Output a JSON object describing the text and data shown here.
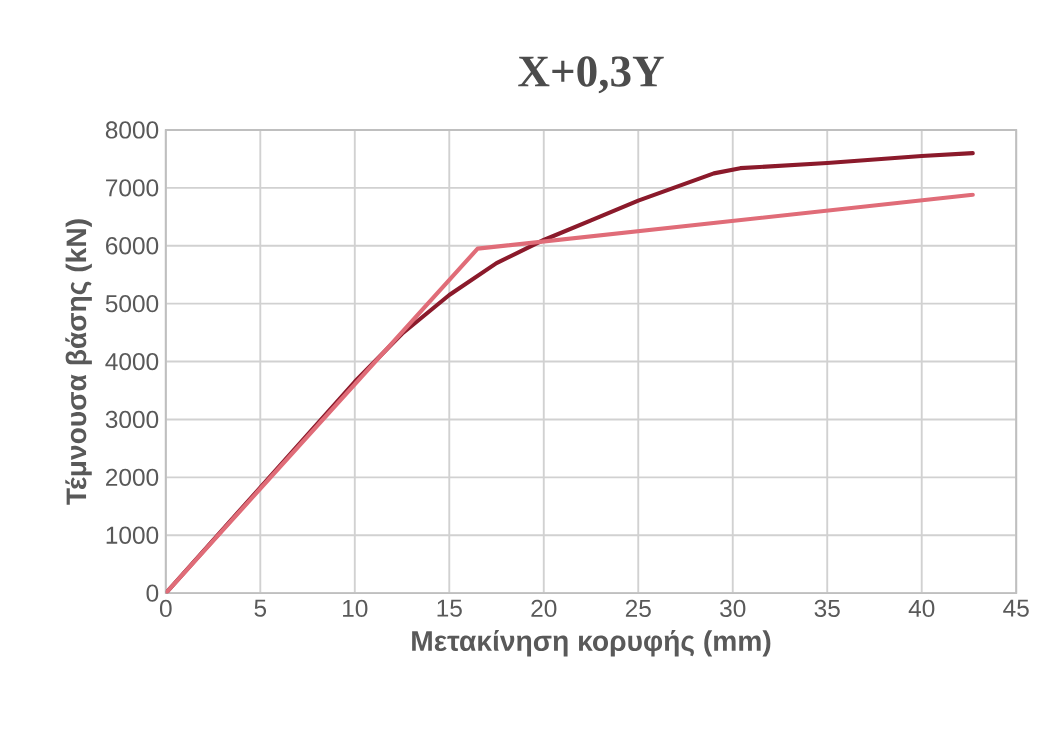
{
  "chart_data": {
    "type": "line",
    "title": "X+0,3Y",
    "xlabel": "Μετακίνηση κορυφής (mm)",
    "ylabel": "Τέμνουσα βάσης (kN)",
    "xlim": [
      0,
      45
    ],
    "ylim": [
      0,
      8000
    ],
    "xticks": [
      0,
      5,
      10,
      15,
      20,
      25,
      30,
      35,
      40,
      45
    ],
    "yticks": [
      0,
      1000,
      2000,
      3000,
      4000,
      5000,
      6000,
      7000,
      8000
    ],
    "grid": true,
    "series": [
      {
        "color": "#8b1a2b",
        "x": [
          0,
          10,
          12.5,
          15,
          17.5,
          20,
          22.5,
          25,
          29,
          30.4,
          35,
          40,
          42.7
        ],
        "values": [
          0,
          3650,
          4480,
          5150,
          5700,
          6100,
          6440,
          6780,
          7250,
          7340,
          7430,
          7550,
          7600
        ]
      },
      {
        "color": "#e06c78",
        "x": [
          0,
          16.5,
          42.7
        ],
        "values": [
          0,
          5950,
          6880
        ]
      }
    ]
  }
}
